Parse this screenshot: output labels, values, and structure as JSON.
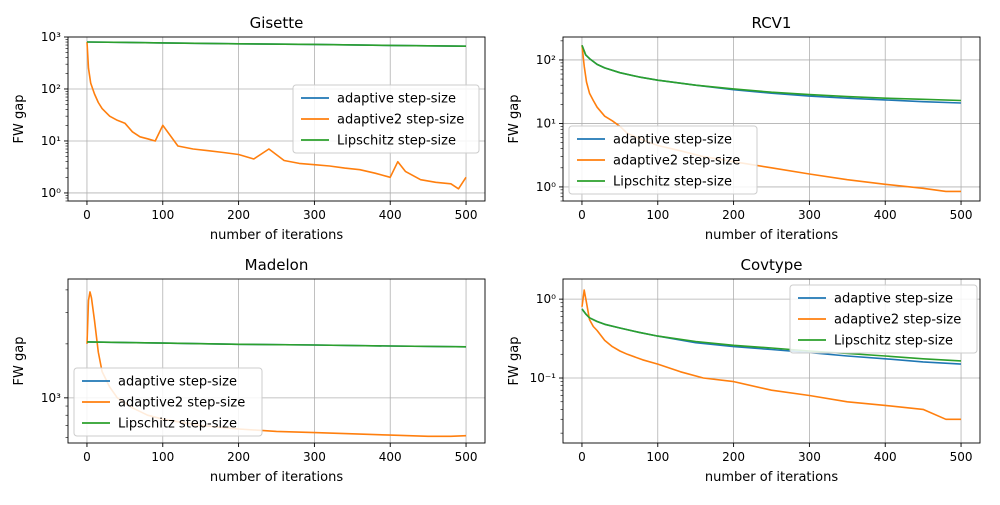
{
  "chart_data": [
    {
      "type": "line",
      "title": "Gisette",
      "xlabel": "number of iterations",
      "ylabel": "FW gap",
      "yscale": "log",
      "xlim": [
        -25,
        525
      ],
      "ylim": [
        0.7,
        1000
      ],
      "xticks": [
        0,
        100,
        200,
        300,
        400,
        500
      ],
      "xtick_labels": [
        "0",
        "100",
        "200",
        "300",
        "400",
        "500"
      ],
      "yticks": [
        1,
        10,
        100,
        1000
      ],
      "ytick_labels": [
        "10⁰",
        "10¹",
        "10²",
        "10³"
      ],
      "grid": true,
      "legend_position": "center-right",
      "series": [
        {
          "name": "adaptive step-size",
          "color": "#1f77b4",
          "x": [
            0,
            100,
            200,
            300,
            400,
            500
          ],
          "y": [
            800,
            770,
            740,
            720,
            690,
            665
          ]
        },
        {
          "name": "adaptive2 step-size",
          "color": "#ff7f0e",
          "x": [
            0,
            2,
            5,
            10,
            15,
            20,
            30,
            40,
            50,
            60,
            70,
            80,
            90,
            100,
            120,
            140,
            160,
            180,
            200,
            220,
            240,
            260,
            280,
            300,
            320,
            340,
            360,
            380,
            400,
            410,
            420,
            440,
            460,
            480,
            490,
            500
          ],
          "y": [
            800,
            250,
            130,
            80,
            55,
            42,
            30,
            25,
            22,
            15,
            12,
            11,
            10,
            20,
            8,
            7,
            6.5,
            6,
            5.5,
            4.5,
            7,
            4.2,
            3.7,
            3.5,
            3.3,
            3.0,
            2.8,
            2.4,
            2.0,
            4.0,
            2.6,
            1.8,
            1.6,
            1.5,
            1.2,
            2.0
          ]
        },
        {
          "name": "Lipschitz step-size",
          "color": "#2ca02c",
          "x": [
            0,
            100,
            200,
            300,
            400,
            500
          ],
          "y": [
            800,
            770,
            740,
            720,
            690,
            665
          ]
        }
      ]
    },
    {
      "type": "line",
      "title": "RCV1",
      "xlabel": "number of iterations",
      "ylabel": "FW gap",
      "yscale": "log",
      "xlim": [
        -25,
        525
      ],
      "ylim": [
        0.6,
        230
      ],
      "xticks": [
        0,
        100,
        200,
        300,
        400,
        500
      ],
      "xtick_labels": [
        "0",
        "100",
        "200",
        "300",
        "400",
        "500"
      ],
      "yticks": [
        1,
        10,
        100
      ],
      "ytick_labels": [
        "10⁰",
        "10¹",
        "10²"
      ],
      "grid": true,
      "legend_position": "center-left",
      "series": [
        {
          "name": "adaptive step-size",
          "color": "#1f77b4",
          "x": [
            0,
            5,
            10,
            20,
            30,
            50,
            75,
            100,
            150,
            200,
            250,
            300,
            350,
            400,
            450,
            500
          ],
          "y": [
            170,
            120,
            105,
            85,
            75,
            63,
            54,
            48,
            40,
            34,
            30,
            27,
            25,
            23.5,
            22,
            21
          ]
        },
        {
          "name": "adaptive2 step-size",
          "color": "#ff7f0e",
          "x": [
            0,
            3,
            6,
            10,
            15,
            20,
            30,
            40,
            50,
            60,
            80,
            100,
            130,
            160,
            200,
            250,
            300,
            350,
            400,
            450,
            480,
            500
          ],
          "y": [
            170,
            80,
            45,
            30,
            23,
            18,
            13,
            11,
            9,
            7,
            5.5,
            4.5,
            3.7,
            3.0,
            2.5,
            2.0,
            1.6,
            1.3,
            1.1,
            0.95,
            0.85,
            0.85
          ]
        },
        {
          "name": "Lipschitz step-size",
          "color": "#2ca02c",
          "x": [
            0,
            5,
            10,
            20,
            30,
            50,
            75,
            100,
            150,
            200,
            250,
            300,
            350,
            400,
            450,
            500
          ],
          "y": [
            170,
            120,
            105,
            85,
            75,
            63,
            54,
            48,
            40,
            35,
            31,
            28.5,
            26.5,
            25,
            24,
            23
          ]
        }
      ]
    },
    {
      "type": "line",
      "title": "Madelon",
      "xlabel": "number of iterations",
      "ylabel": "FW gap",
      "yscale": "log",
      "xlim": [
        -25,
        525
      ],
      "ylim": [
        560,
        4600
      ],
      "xticks": [
        0,
        100,
        200,
        300,
        400,
        500
      ],
      "xtick_labels": [
        "0",
        "100",
        "200",
        "300",
        "400",
        "500"
      ],
      "yticks": [
        1000
      ],
      "ytick_labels": [
        "10³"
      ],
      "grid": true,
      "legend_position": "lower-left",
      "series": [
        {
          "name": "adaptive step-size",
          "color": "#1f77b4",
          "x": [
            0,
            100,
            200,
            300,
            400,
            500
          ],
          "y": [
            2050,
            2020,
            1990,
            1970,
            1945,
            1925
          ]
        },
        {
          "name": "adaptive2 step-size",
          "color": "#ff7f0e",
          "x": [
            0,
            2,
            4,
            6,
            10,
            15,
            20,
            30,
            40,
            60,
            80,
            100,
            150,
            200,
            250,
            300,
            350,
            400,
            450,
            480,
            500
          ],
          "y": [
            2000,
            3500,
            3900,
            3600,
            2700,
            1800,
            1400,
            1150,
            1000,
            880,
            800,
            760,
            700,
            670,
            650,
            640,
            630,
            620,
            610,
            610,
            615
          ]
        },
        {
          "name": "Lipschitz step-size",
          "color": "#2ca02c",
          "x": [
            0,
            100,
            200,
            300,
            400,
            500
          ],
          "y": [
            2050,
            2020,
            1990,
            1970,
            1945,
            1925
          ]
        }
      ]
    },
    {
      "type": "line",
      "title": "Covtype",
      "xlabel": "number of iterations",
      "ylabel": "FW gap",
      "yscale": "log",
      "xlim": [
        -25,
        525
      ],
      "ylim": [
        0.015,
        1.8
      ],
      "xticks": [
        0,
        100,
        200,
        300,
        400,
        500
      ],
      "xtick_labels": [
        "0",
        "100",
        "200",
        "300",
        "400",
        "500"
      ],
      "yticks": [
        0.1,
        1
      ],
      "ytick_labels": [
        "10⁻¹",
        "10⁰"
      ],
      "grid": true,
      "legend_position": "upper-right",
      "series": [
        {
          "name": "adaptive step-size",
          "color": "#1f77b4",
          "x": [
            0,
            5,
            10,
            20,
            30,
            50,
            75,
            100,
            150,
            200,
            250,
            300,
            350,
            400,
            450,
            500
          ],
          "y": [
            0.75,
            0.65,
            0.58,
            0.52,
            0.48,
            0.43,
            0.38,
            0.34,
            0.28,
            0.25,
            0.23,
            0.21,
            0.19,
            0.175,
            0.16,
            0.15
          ]
        },
        {
          "name": "adaptive2 step-size",
          "color": "#ff7f0e",
          "x": [
            0,
            3,
            6,
            10,
            15,
            20,
            30,
            40,
            50,
            60,
            80,
            100,
            130,
            160,
            200,
            250,
            300,
            350,
            400,
            450,
            480,
            500
          ],
          "y": [
            0.8,
            1.3,
            0.9,
            0.55,
            0.45,
            0.4,
            0.3,
            0.25,
            0.22,
            0.2,
            0.17,
            0.15,
            0.12,
            0.1,
            0.09,
            0.07,
            0.06,
            0.05,
            0.045,
            0.04,
            0.03,
            0.03
          ]
        },
        {
          "name": "Lipschitz step-size",
          "color": "#2ca02c",
          "x": [
            0,
            5,
            10,
            20,
            30,
            50,
            75,
            100,
            150,
            200,
            250,
            300,
            350,
            400,
            450,
            500
          ],
          "y": [
            0.75,
            0.65,
            0.58,
            0.52,
            0.48,
            0.43,
            0.38,
            0.34,
            0.29,
            0.26,
            0.24,
            0.22,
            0.205,
            0.19,
            0.175,
            0.165
          ]
        }
      ]
    }
  ]
}
